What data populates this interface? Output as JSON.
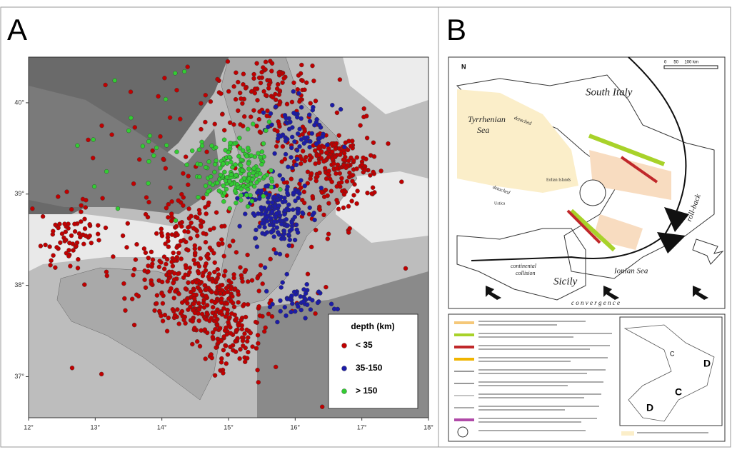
{
  "panel_a": {
    "label": "A",
    "xlim": [
      12,
      18
    ],
    "ylim": [
      36.55,
      40.5
    ],
    "xticks": [
      {
        "value": 12,
        "label": "12°"
      },
      {
        "value": 13,
        "label": "13°"
      },
      {
        "value": 14,
        "label": "14°"
      },
      {
        "value": 15,
        "label": "15°"
      },
      {
        "value": 16,
        "label": "16°"
      },
      {
        "value": 17,
        "label": "17°"
      },
      {
        "value": 18,
        "label": "18°"
      }
    ],
    "yticks": [
      {
        "value": 40,
        "label": "40°"
      },
      {
        "value": 39,
        "label": "39°"
      },
      {
        "value": 38,
        "label": "38°"
      },
      {
        "value": 37,
        "label": "37°"
      }
    ],
    "legend": {
      "title": "depth (km)",
      "items": [
        {
          "label": "< 35",
          "color": "#c00000"
        },
        {
          "label": "35-150",
          "color": "#1c1ca8"
        },
        {
          "label": "> 150",
          "color": "#33cc33"
        }
      ]
    }
  },
  "panel_b": {
    "label": "B",
    "north": "N",
    "scale": "0      50     100 km",
    "labels": {
      "south_italy": "South Italy",
      "tyrrhenian_1": "Tyrrhenian",
      "tyrrhenian_2": "Sea",
      "detached_1": "detached",
      "detached_2": "detached",
      "eolian": "Eolian Islands",
      "ustica": "Ustica",
      "roll_back": "roll-back",
      "collision_1": "continental",
      "collision_2": "collision",
      "sicily": "Sicily",
      "ionian": "Ionian Sea",
      "convergence": "c o n v e r g e n c e",
      "inset_c1": "C",
      "inset_c2": "C",
      "inset_d1": "D",
      "inset_d2": "D"
    }
  }
}
